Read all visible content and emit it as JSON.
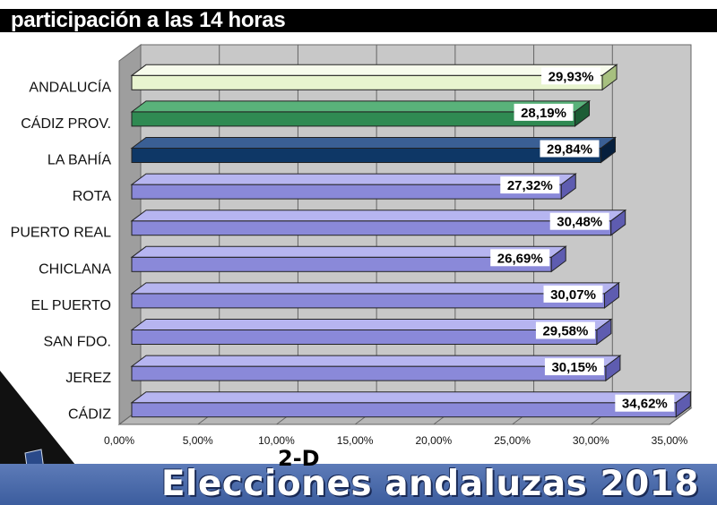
{
  "title": "participación a las 14 horas",
  "footer": {
    "tag": "2-D",
    "title": "Elecciones andaluzas 2018"
  },
  "colors": {
    "andalucia": "#e8f4cf",
    "cadiz_prov": "#2f8a52",
    "la_bahia": "#0e3766",
    "municipio": "#8a89d9",
    "floor": "#b7b7b7",
    "wall": "#c8c8c8"
  },
  "chart_data": {
    "type": "bar",
    "orientation": "horizontal",
    "categories": [
      "ANDALUCÍA",
      "CÁDIZ PROV.",
      "LA BAHÍA",
      "ROTA",
      "PUERTO REAL",
      "CHICLANA",
      "EL PUERTO",
      "SAN FDO.",
      "JEREZ",
      "CÁDIZ"
    ],
    "values": [
      29.93,
      28.19,
      29.84,
      27.32,
      30.48,
      26.69,
      30.07,
      29.58,
      30.15,
      34.62
    ],
    "value_labels": [
      "29,93%",
      "28,19%",
      "29,84%",
      "27,32%",
      "30,48%",
      "26,69%",
      "30,07%",
      "29,58%",
      "30,15%",
      "34,62%"
    ],
    "xlim": [
      0,
      35
    ],
    "x_ticks": [
      0,
      5,
      10,
      15,
      20,
      25,
      30,
      35
    ],
    "x_tick_labels": [
      "0,00%",
      "5,00%",
      "10,00%",
      "15,00%",
      "20,00%",
      "25,00%",
      "30,00%",
      "35,00%"
    ],
    "grid": true,
    "style": "3d"
  }
}
